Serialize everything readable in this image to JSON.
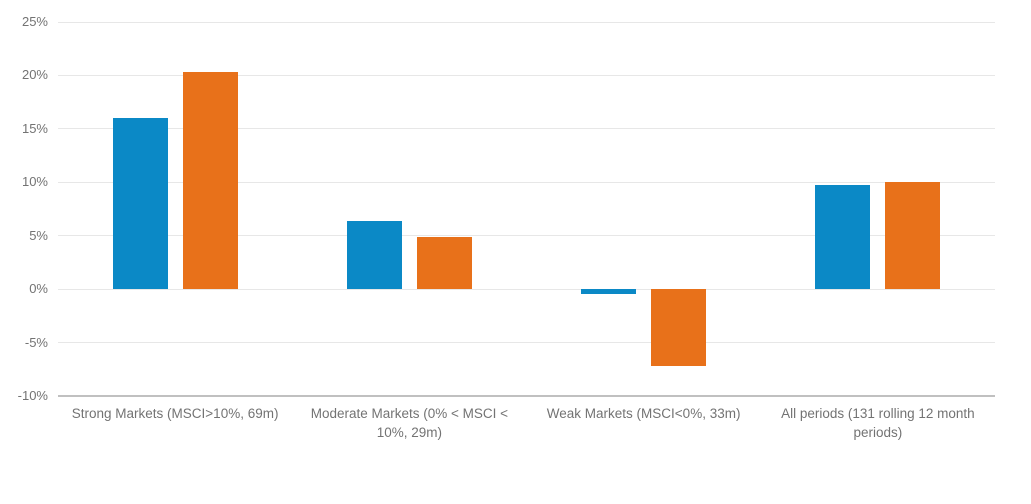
{
  "chart_data": {
    "type": "bar",
    "title": "",
    "legend": "none",
    "grid": true,
    "categories": [
      "Strong Markets (MSCI>10%, 69m)",
      "Moderate Markets (0% < MSCI < 10%, 29m)",
      "Weak Markets (MSCI<0%, 33m)",
      "All periods (131 rolling 12 month periods)"
    ],
    "series": [
      {
        "name": "series-1",
        "color": "#0b89c6",
        "values": [
          16.0,
          6.4,
          -0.5,
          9.7
        ]
      },
      {
        "name": "series-2",
        "color": "#e8711a",
        "values": [
          20.3,
          4.9,
          -7.2,
          10.0
        ]
      }
    ],
    "y_axis": {
      "min": -10,
      "max": 25,
      "unit": "%",
      "ticks": [
        {
          "value": 25,
          "label": "25%"
        },
        {
          "value": 20,
          "label": "20%"
        },
        {
          "value": 15,
          "label": "15%"
        },
        {
          "value": 10,
          "label": "10%"
        },
        {
          "value": 5,
          "label": "5%"
        },
        {
          "value": 0,
          "label": "0%"
        },
        {
          "value": -5,
          "label": "-5%"
        },
        {
          "value": -10,
          "label": "-10%"
        }
      ]
    }
  },
  "colors": {
    "background": "#ffffff",
    "gridline": "#e7e7e7",
    "axis_line": "#c0c0c0",
    "tick_label": "#737373",
    "category_label": "#737373"
  }
}
